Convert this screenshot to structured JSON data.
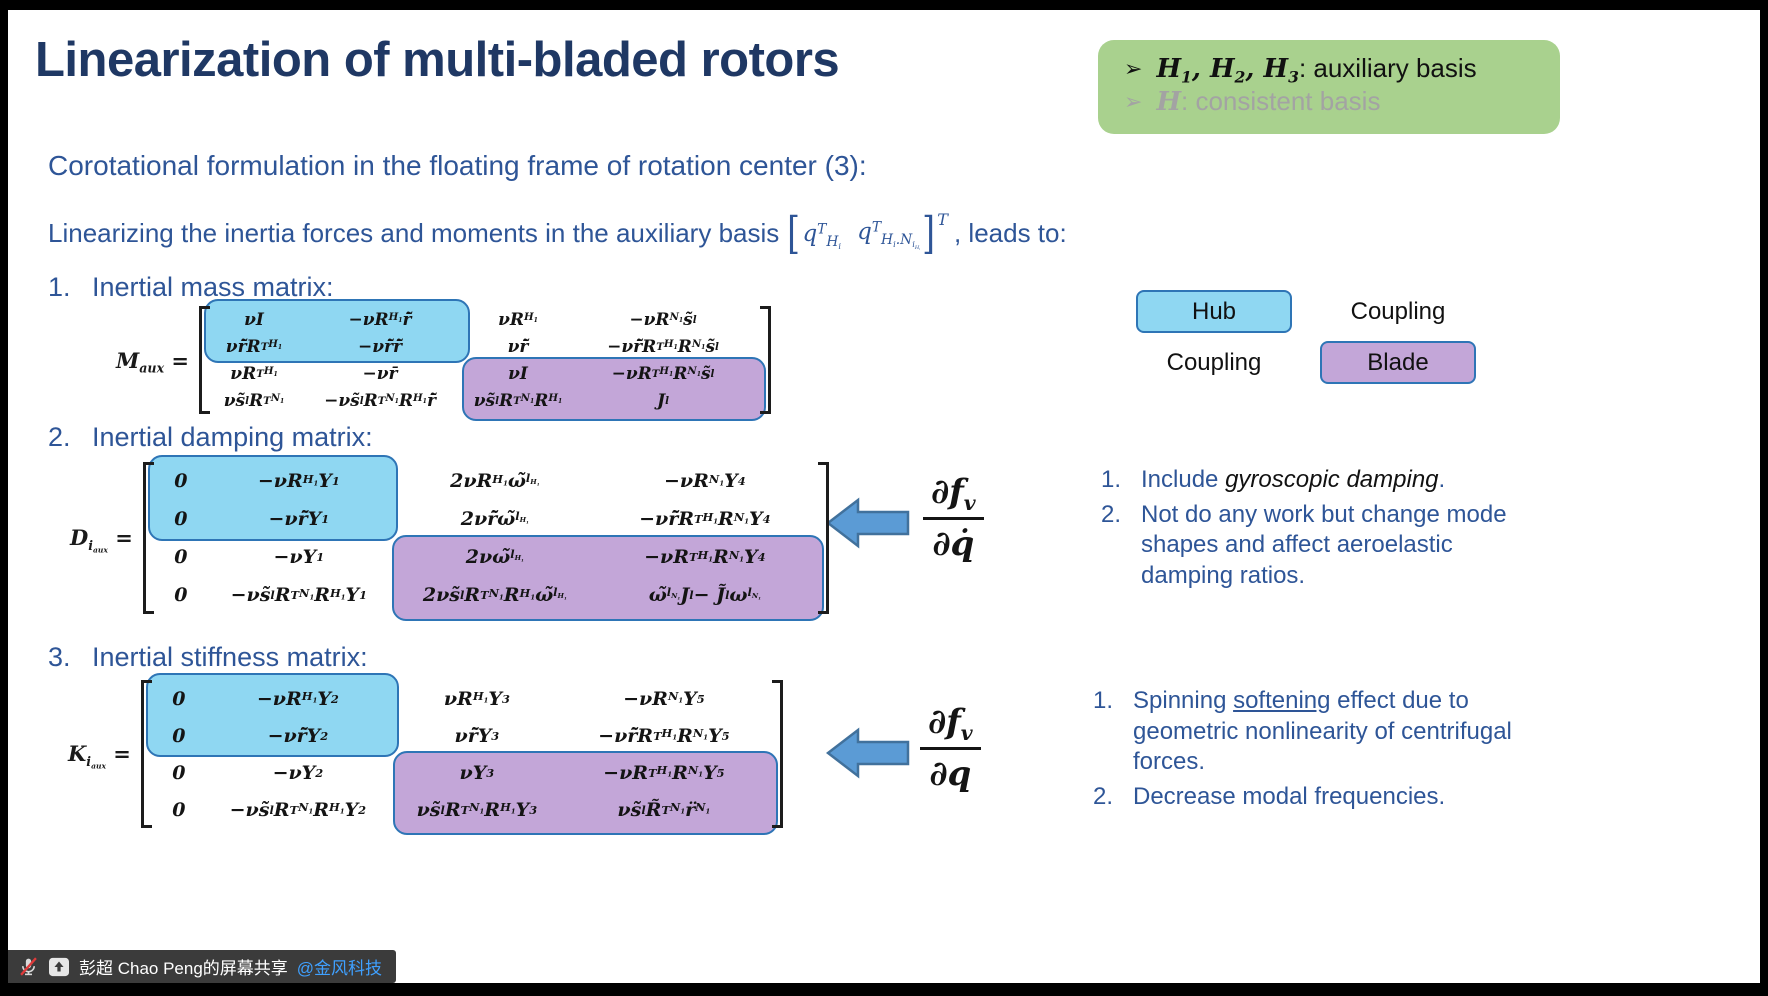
{
  "slide": {
    "title": "Linearization of multi-bladed rotors",
    "subtitle": "Corotational formulation in the floating frame of rotation center (3):",
    "lead": {
      "before": "Linearizing the inertia forces and moments in the auxiliary basis",
      "math_q1": "q^{T}_{H_{i}}",
      "math_q2": "q^{T}_{H_{i}.N_{i_{H_{i}}}}",
      "outer_sup": "T",
      "after": ", leads to:"
    }
  },
  "callout": {
    "bg": "#A9D18E",
    "items": [
      {
        "math": "H_{1}, H_{2}, H_{3}",
        "label": ": auxiliary basis",
        "muted": false
      },
      {
        "math": "H",
        "label": ": consistent basis",
        "muted": true
      }
    ]
  },
  "sections": [
    {
      "n": "1.",
      "text": "Inertial mass matrix:"
    },
    {
      "n": "2.",
      "text": "Inertial damping matrix:"
    },
    {
      "n": "3.",
      "text": "Inertial stiffness matrix:"
    }
  ],
  "matrices": {
    "mass": {
      "label": "M_{aux} =",
      "rows": [
        [
          "νI",
          "−νR_{H_{1}}r̄̃",
          "νR_{H_{1}}",
          "−νR_{N_{1}}s̃_{l}"
        ],
        [
          "νr̄̃R^{T}_{H_{1}}",
          "−νr̄̃r̄̃",
          "νr̄̃",
          "−νr̄̃R^{T}_{H_{1}}R_{N_{1}}s̃_{l}"
        ],
        [
          "νR^{T}_{H_{1}}",
          "−νr̄",
          "νI",
          "−νR^{T}_{H_{1}}R_{N_{1}}s̃_{l}"
        ],
        [
          "νs̃_{l}R^{T}_{N_{1}}",
          "−νs̃_{l}R^{T}_{N_{1}}R_{H_{1}}r̄̃",
          "νs̃_{l}R^{T}_{N_{1}}R_{H_{1}}",
          "J_{l}"
        ]
      ]
    },
    "damping": {
      "label": "D_{i_{aux}} =",
      "rows": [
        [
          "0",
          "−νR_{H_{1}}Υ_{1}",
          "2νR_{H_{1}}ω̃_{l_{H_{1}}}",
          "−νR_{N_{1}}Υ_{4}"
        ],
        [
          "0",
          "−νr̄̃Υ_{1}",
          "2νr̄̃ω̃_{l_{H_{1}}}",
          "−νr̄̃R^{T}_{H_{1}}R_{N_{1}}Υ_{4}"
        ],
        [
          "0",
          "−νΥ_{1}",
          "2νω̃_{l_{H_{1}}}",
          "−νR^{T}_{H_{1}}R_{N_{1}}Υ_{4}"
        ],
        [
          "0",
          "−νs̃_{l}R^{T}_{N_{1}}R_{H_{1}}Υ_{1}",
          "2νs̃_{l}R^{T}_{N_{1}}R_{H_{1}}ω̃_{l_{H_{1}}}",
          "ω̃_{l_{N_{1}}}J_{l} − J̃_{l}ω_{l_{N_{1}}}"
        ]
      ]
    },
    "stiffness": {
      "label": "K_{i_{aux}} =",
      "rows": [
        [
          "0",
          "−νR_{H_{1}}Υ_{2}",
          "νR_{H_{1}}Υ_{3}",
          "−νR_{N_{1}}Υ_{5}"
        ],
        [
          "0",
          "−νr̄̃Υ_{2}",
          "νr̄̃Υ_{3}",
          "−νr̄̃R^{T}_{H_{1}}R_{N_{1}}Υ_{5}"
        ],
        [
          "0",
          "−νΥ_{2}",
          "νΥ_{3}",
          "−νR^{T}_{H_{1}}R_{N_{1}}Υ_{5}"
        ],
        [
          "0",
          "−νs̃_{l}R^{T}_{N_{1}}R_{H_{1}}Υ_{2}",
          "νs̃_{l}R^{T}_{N_{1}}R_{H_{1}}Υ_{3}",
          "νs̃_{l}R̃^{T}_{N_{1}}r̈_{N_{1}}"
        ]
      ]
    }
  },
  "legend": {
    "hub": "Hub",
    "coupling_top": "Coupling",
    "coupling_bottom": "Coupling",
    "blade": "Blade",
    "hub_fill": "#8FD7F2",
    "blade_fill": "#C3A6D8"
  },
  "fractions": {
    "damping": {
      "num": "∂f_{v}",
      "den": "∂q̇"
    },
    "stiffness": {
      "num": "∂f_{v}",
      "den": "∂q"
    }
  },
  "notes_damping": [
    {
      "n": "1.",
      "pre": "Include ",
      "em": "gyroscopic damping",
      "post": "."
    },
    {
      "n": "2.",
      "pre": "Not do any work but change mode shapes and affect aeroelastic damping ratios.",
      "em": "",
      "post": ""
    }
  ],
  "notes_stiffness": [
    {
      "n": "1.",
      "pre": "Spinning ",
      "u": "softening",
      "post": " effect due to geometric nonlinearity of centrifugal forces."
    },
    {
      "n": "2.",
      "pre": "Decrease modal frequencies.",
      "u": "",
      "post": ""
    }
  ],
  "share_bar": {
    "text": "彭超 Chao Peng的屏幕共享",
    "handle": "@金风科技",
    "handle_color": "#3FA0FF",
    "bar_color": "#3B3B3B"
  },
  "colors": {
    "title_navy": "#1F3864",
    "body_blue": "#2E5597",
    "callout_green": "#A9D18E",
    "highlight_blue": "#8FD7F2",
    "highlight_purple": "#C3A6D8",
    "highlight_border": "#2E75B6",
    "arrow_fill": "#5B9BD5",
    "arrow_stroke": "#41719C"
  }
}
